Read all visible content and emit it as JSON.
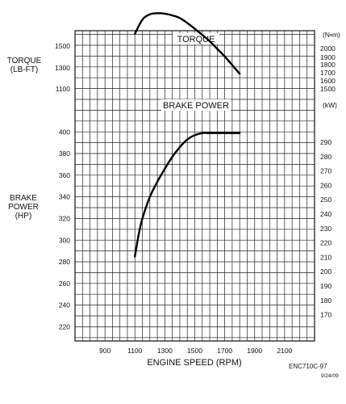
{
  "chart_data": [
    {
      "type": "line",
      "title": "TORQUE",
      "xlabel": "ENGINE SPEED (RPM)",
      "ylabel": "TORQUE (LB-FT)",
      "y2label": "(N•m)",
      "xlim": [
        700,
        2300
      ],
      "ylim": [
        1000,
        1500
      ],
      "y2lim": [
        1350,
        2030
      ],
      "x_ticks": [
        900,
        1100,
        1300,
        1500,
        1700,
        1900,
        2100
      ],
      "y_ticks": [
        1100,
        1300,
        1500
      ],
      "y2_ticks": [
        1500,
        1600,
        1700,
        1800,
        1900,
        2000
      ],
      "grid": true,
      "series": [
        {
          "x": [
            1100,
            1150,
            1200,
            1250,
            1300,
            1350,
            1400,
            1450,
            1500,
            1550,
            1600,
            1650,
            1700,
            1750,
            1800
          ],
          "y": [
            1355,
            1420,
            1445,
            1450,
            1448,
            1440,
            1428,
            1405,
            1378,
            1350,
            1320,
            1285,
            1250,
            1210,
            1170
          ]
        }
      ]
    },
    {
      "type": "line",
      "title": "BRAKE POWER",
      "xlabel": "ENGINE SPEED (RPM)",
      "ylabel": "BRAKE POWER (HP)",
      "y2label": "(kW)",
      "xlim": [
        700,
        2300
      ],
      "ylim": [
        210,
        410
      ],
      "y2lim": [
        160,
        300
      ],
      "x_ticks": [
        900,
        1100,
        1300,
        1500,
        1700,
        1900,
        2100
      ],
      "y_ticks": [
        220,
        240,
        260,
        280,
        300,
        320,
        340,
        360,
        380,
        400
      ],
      "y2_ticks": [
        170,
        180,
        190,
        200,
        210,
        220,
        230,
        240,
        250,
        260,
        270,
        280,
        290
      ],
      "grid": true,
      "series": [
        {
          "x": [
            1100,
            1125,
            1150,
            1200,
            1250,
            1300,
            1350,
            1400,
            1450,
            1500,
            1550,
            1600,
            1700,
            1800
          ],
          "y": [
            285,
            305,
            320,
            340,
            354,
            366,
            377,
            386,
            393,
            397,
            399,
            399,
            399,
            399
          ]
        }
      ]
    }
  ],
  "labels": {
    "torque_axis_line1": "TORQUE",
    "torque_axis_line2": "(LB-FT)",
    "power_axis_line1": "BRAKE",
    "power_axis_line2": "POWER",
    "power_axis_line3": "(HP)",
    "doc_code": "ENC710C-97",
    "doc_date": "9/24/09"
  }
}
